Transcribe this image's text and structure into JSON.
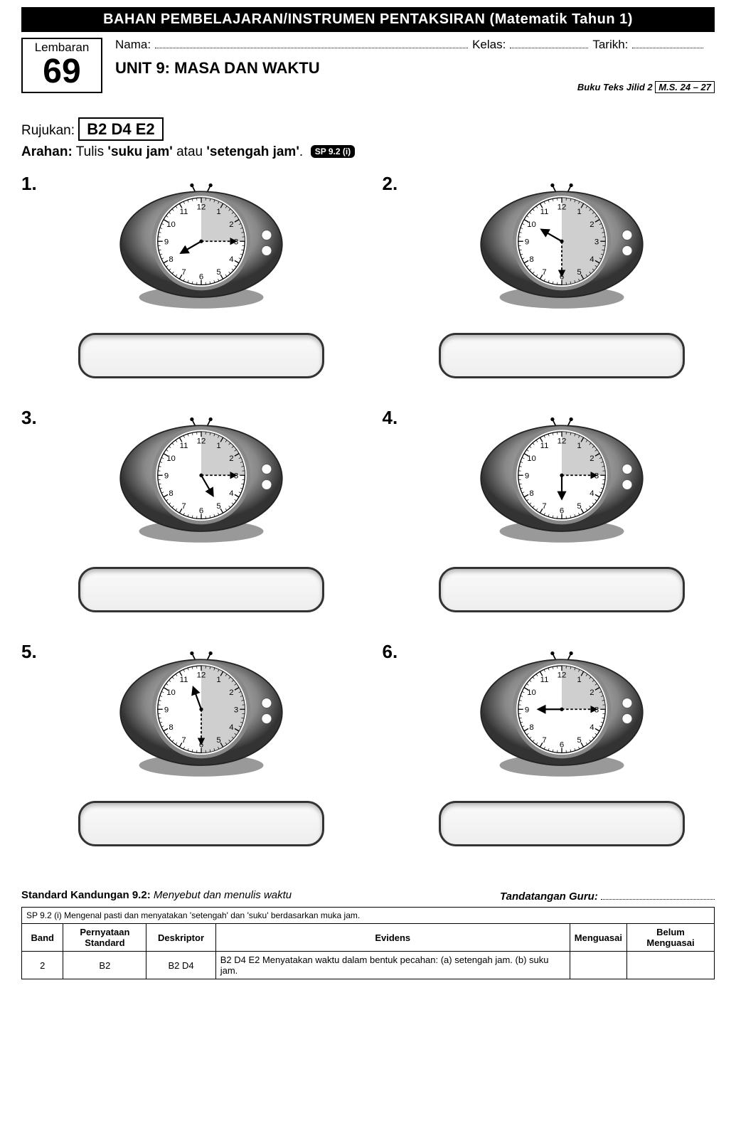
{
  "banner": "BAHAN PEMBELAJARAN/INSTRUMEN PENTAKSIRAN (Matematik Tahun 1)",
  "lembaran": {
    "label": "Lembaran",
    "number": "69"
  },
  "fields": {
    "nama": "Nama:",
    "kelas": "Kelas:",
    "tarikh": "Tarikh:"
  },
  "unit_title": "UNIT 9: MASA DAN WAKTU",
  "book_ref": {
    "prefix": "Buku Teks Jilid 2",
    "ms": "M.S. 24 – 27"
  },
  "rujukan": {
    "label": "Rujukan:",
    "code": "B2 D4 E2"
  },
  "arahan": {
    "label": "Arahan:",
    "text_pre": " Tulis ",
    "q1": "'suku jam'",
    "mid": " atau ",
    "q2": "'setengah jam'",
    "dot": "."
  },
  "sp_chip": "SP 9.2 (i)",
  "clock_numbers": [
    "12",
    "1",
    "2",
    "3",
    "4",
    "5",
    "6",
    "7",
    "8",
    "9",
    "10",
    "11"
  ],
  "items": [
    {
      "num": "1.",
      "hour_angle": -120,
      "minute_angle": 90,
      "shade_end": 90
    },
    {
      "num": "2.",
      "hour_angle": -60,
      "minute_angle": 180,
      "shade_end": 180
    },
    {
      "num": "3.",
      "hour_angle": 150,
      "minute_angle": 90,
      "shade_end": 90
    },
    {
      "num": "4.",
      "hour_angle": 180,
      "minute_angle": 90,
      "shade_end": 90
    },
    {
      "num": "5.",
      "hour_angle": -20,
      "minute_angle": 180,
      "shade_end": 180
    },
    {
      "num": "6.",
      "hour_angle": -90,
      "minute_angle": 90,
      "shade_end": 90
    }
  ],
  "footer": {
    "std_label": "Standard Kandungan 9.2:",
    "std_text": "Menyebut dan menulis waktu",
    "sign_label": "Tandatangan Guru:",
    "sp_line": "SP 9.2 (i) Mengenal pasti dan menyatakan 'setengah' dan 'suku' berdasarkan muka jam.",
    "headers": [
      "Band",
      "Pernyataan Standard",
      "Deskriptor",
      "Evidens",
      "Menguasai",
      "Belum Menguasai"
    ],
    "row": [
      "2",
      "B2",
      "B2 D4",
      "B2 D4 E2 Menyatakan waktu dalam bentuk pecahan: (a) setengah jam. (b) suku jam."
    ]
  }
}
